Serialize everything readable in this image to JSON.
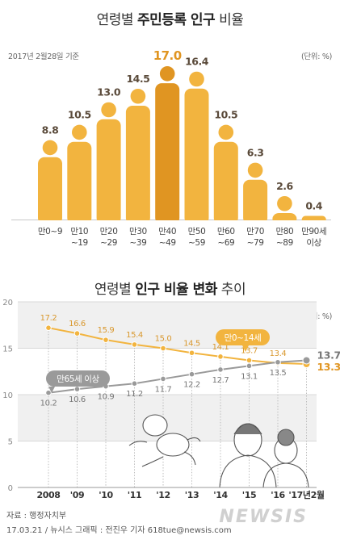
{
  "chart_data": [
    {
      "type": "bar",
      "title_plain": "연령별 ",
      "title_bold": "주민등록 인구",
      "title_end": " 비율",
      "subtitle": "2017년 2월28일 기준",
      "unit": "(단위: %)",
      "categories": [
        [
          "만0~9"
        ],
        [
          "만10",
          "~19"
        ],
        [
          "만20",
          "~29"
        ],
        [
          "만30",
          "~39"
        ],
        [
          "만40",
          "~49"
        ],
        [
          "만50",
          "~59"
        ],
        [
          "만60",
          "~69"
        ],
        [
          "만70",
          "~79"
        ],
        [
          "만80",
          "~89"
        ],
        [
          "만90세",
          "이상"
        ]
      ],
      "values": [
        8.8,
        10.5,
        13.0,
        14.5,
        17.0,
        16.4,
        10.5,
        6.3,
        2.6,
        0.4
      ],
      "value_labels": [
        "8.8",
        "10.5",
        "13.0",
        "14.5",
        "17.0",
        "16.4",
        "10.5",
        "6.3",
        "2.6",
        "0.4"
      ],
      "highlight_index": 4,
      "colors": {
        "bar": "#f2b43f",
        "highlight": "#e09522",
        "label": "#5a4a3a",
        "highlight_label": "#e09522"
      }
    },
    {
      "type": "line",
      "title_plain": "연령별 ",
      "title_bold": "인구 비율 변화",
      "title_end": " 추이",
      "unit": "(단위: %)",
      "x": [
        "2008",
        "'09",
        "'10",
        "'11",
        "'12",
        "'13",
        "'14",
        "'15",
        "'16",
        "'17년2월"
      ],
      "y_ticks": [
        "20",
        "15",
        "10",
        "5",
        "0"
      ],
      "ylim": [
        0,
        20
      ],
      "series": [
        {
          "name": "만0~14세",
          "values": [
            17.2,
            16.6,
            15.9,
            15.4,
            15.0,
            14.5,
            14.1,
            13.7,
            13.4,
            13.3
          ],
          "labels": [
            "17.2",
            "16.6",
            "15.9",
            "15.4",
            "15.0",
            "14.5",
            "14.1",
            "13.7",
            "13.4",
            "13.3"
          ],
          "color": "#f2b43f"
        },
        {
          "name": "만65세 이상",
          "values": [
            10.2,
            10.6,
            10.9,
            11.2,
            11.7,
            12.2,
            12.7,
            13.1,
            13.5,
            13.7
          ],
          "labels": [
            "10.2",
            "10.6",
            "10.9",
            "11.2",
            "11.7",
            "12.2",
            "12.7",
            "13.1",
            "13.5",
            "13.7"
          ],
          "color": "#9a9a9a"
        }
      ],
      "bands": [
        [
          15,
          20
        ],
        [
          5,
          10
        ]
      ]
    }
  ],
  "footer": {
    "source": "자료 : 행정자치부",
    "credit": "17.03.21 / 뉴시스 그래픽 : 전진우 기자 618tue@newsis.com",
    "logo": "NEWSIS"
  }
}
